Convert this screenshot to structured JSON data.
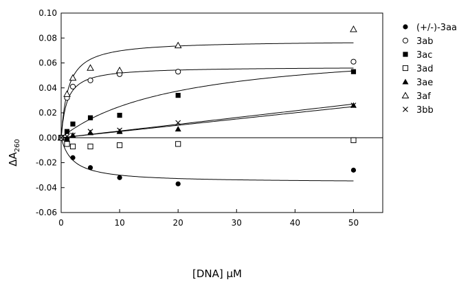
{
  "chart_data": {
    "type": "scatter",
    "xlabel": "[DNA] μM",
    "ylabel": {
      "base": "ΔA",
      "sub": "260"
    },
    "xlim": [
      0,
      55
    ],
    "ylim": [
      -0.06,
      0.1
    ],
    "xticks": [
      0,
      10,
      20,
      30,
      40,
      50
    ],
    "xtick_labels": [
      "0",
      "10",
      "20",
      "30",
      "40",
      "50"
    ],
    "yticks": [
      -0.06,
      -0.04,
      -0.02,
      0.0,
      0.02,
      0.04,
      0.06,
      0.08,
      0.1
    ],
    "ytick_labels": [
      "-0.06",
      "-0.04",
      "-0.02",
      "0.00",
      "0.02",
      "0.04",
      "0.06",
      "0.08",
      "0.10"
    ],
    "zero_line": true,
    "grid": false,
    "legend_position": "right",
    "x": [
      0,
      1,
      2,
      5,
      10,
      20,
      50
    ],
    "series": [
      {
        "name": "(+/-)-3aa",
        "marker": "filled-circle",
        "values": [
          0,
          -0.001,
          -0.016,
          -0.024,
          -0.032,
          -0.037,
          -0.026
        ],
        "fit": {
          "model": "hyperbolic",
          "amax": -0.036,
          "kd": 2.0
        }
      },
      {
        "name": "3ab",
        "marker": "open-circle",
        "values": [
          0,
          0.032,
          0.041,
          0.046,
          0.051,
          0.053,
          0.061
        ],
        "fit": {
          "model": "hyperbolic",
          "amax": 0.057,
          "kd": 1.0
        }
      },
      {
        "name": "3ac",
        "marker": "filled-square",
        "values": [
          0,
          0.005,
          0.011,
          0.016,
          0.018,
          0.034,
          0.053
        ],
        "fit": {
          "model": "hyperbolic",
          "amax": 0.075,
          "kd": 20.0
        }
      },
      {
        "name": "3ad",
        "marker": "open-square",
        "values": [
          0,
          -0.005,
          -0.007,
          -0.007,
          -0.006,
          -0.005,
          -0.002
        ],
        "fit": null
      },
      {
        "name": "3ae",
        "marker": "filled-triangle",
        "values": [
          0,
          -0.001,
          0.002,
          0.004,
          0.005,
          0.007,
          0.026
        ],
        "fit": {
          "model": "linear",
          "slope": 0.0005
        }
      },
      {
        "name": "3af",
        "marker": "open-triangle",
        "values": [
          0,
          0.035,
          0.048,
          0.056,
          0.054,
          0.074,
          0.087
        ],
        "fit": {
          "model": "hyperbolic",
          "amax": 0.078,
          "kd": 1.2
        }
      },
      {
        "name": "3bb",
        "marker": "x",
        "values": [
          0,
          0.001,
          0.002,
          0.005,
          0.006,
          0.012,
          0.026
        ],
        "fit": {
          "model": "linear",
          "slope": 0.00054
        }
      }
    ]
  }
}
